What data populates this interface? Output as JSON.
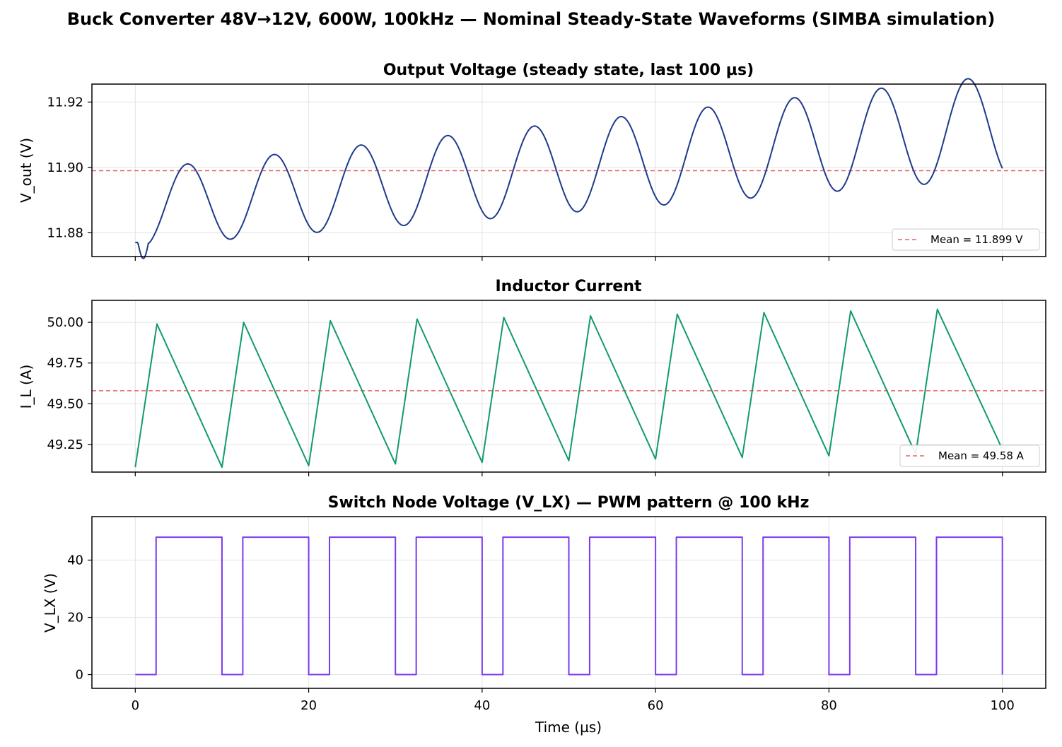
{
  "figure": {
    "title": "Buck Converter 48V→12V, 600W, 100kHz — Nominal Steady-State Waveforms (SIMBA simulation)"
  },
  "chart_data": [
    {
      "id": "vout",
      "type": "line",
      "title": "Output Voltage (steady state, last 100 µs)",
      "xlabel": "",
      "ylabel": "V_out (V)",
      "xlim": [
        -5,
        105
      ],
      "ylim": [
        11.8727,
        11.9255
      ],
      "xticks": [
        0,
        20,
        40,
        60,
        80,
        100
      ],
      "yticks": [
        11.88,
        11.9,
        11.92
      ],
      "ytick_labels": [
        "11.88",
        "11.90",
        "11.92"
      ],
      "show_xtick_labels": false,
      "grid": true,
      "legend_position": "lower-right",
      "series": [
        {
          "color": "#1f3a8a",
          "waveform": "ripple",
          "period": 10,
          "x_range": [
            0,
            100
          ],
          "mean_start": 11.8875,
          "mean_slope": 0.00025,
          "amplitude_start": 0.0118,
          "amplitude_slope": 4e-05,
          "phase_peak_at": 6,
          "start_value": 11.877
        }
      ],
      "reference_line": {
        "label": "Mean = 11.899 V",
        "value": 11.899,
        "color": "#e06666"
      }
    },
    {
      "id": "il",
      "type": "line",
      "title": "Inductor Current",
      "xlabel": "",
      "ylabel": "I_L (A)",
      "xlim": [
        -5,
        105
      ],
      "ylim": [
        49.08,
        50.135
      ],
      "xticks": [
        0,
        20,
        40,
        60,
        80,
        100
      ],
      "yticks": [
        49.25,
        49.5,
        49.75,
        50.0
      ],
      "ytick_labels": [
        "49.25",
        "49.50",
        "49.75",
        "50.00"
      ],
      "show_xtick_labels": false,
      "grid": true,
      "legend_position": "lower-right",
      "series": [
        {
          "color": "#129a6e",
          "waveform": "triangle",
          "x": [
            0,
            2.5,
            10,
            12.5,
            20,
            22.5,
            30,
            32.5,
            40,
            42.5,
            50,
            52.5,
            60,
            62.5,
            70,
            72.5,
            80,
            82.5,
            90,
            92.5,
            100
          ],
          "y": [
            49.11,
            49.99,
            49.11,
            50.0,
            49.12,
            50.01,
            49.13,
            50.02,
            49.14,
            50.03,
            49.15,
            50.04,
            49.16,
            50.05,
            49.17,
            50.06,
            49.18,
            50.07,
            49.19,
            50.08,
            49.22
          ]
        }
      ],
      "reference_line": {
        "label": "Mean = 49.58 A",
        "value": 49.58,
        "color": "#e06666"
      }
    },
    {
      "id": "vlx",
      "type": "line",
      "title": "Switch Node Voltage (V_LX) — PWM pattern @ 100 kHz",
      "xlabel": "Time (µs)",
      "ylabel": "V_LX (V)",
      "xlim": [
        -5,
        105
      ],
      "ylim": [
        -4.8,
        55.2
      ],
      "xticks": [
        0,
        20,
        40,
        60,
        80,
        100
      ],
      "xtick_labels": [
        "0",
        "20",
        "40",
        "60",
        "80",
        "100"
      ],
      "yticks": [
        0,
        20,
        40
      ],
      "ytick_labels": [
        "0",
        "20",
        "40"
      ],
      "show_xtick_labels": true,
      "grid": true,
      "series": [
        {
          "color": "#7c3aed",
          "waveform": "pwm",
          "period": 10,
          "low_until": 2.4,
          "high_value": 48,
          "low_value": 0,
          "x_range": [
            0,
            100
          ]
        }
      ]
    }
  ]
}
